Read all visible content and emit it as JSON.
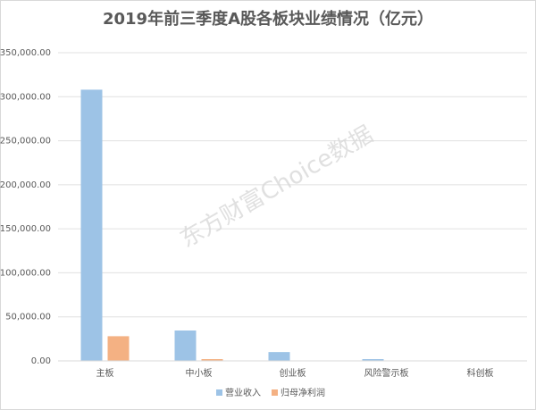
{
  "chart_data": {
    "type": "bar",
    "title": "2019年前三季度A股各板块业绩情况（亿元）",
    "watermark": "东方财富Choice数据",
    "categories": [
      "主板",
      "中小板",
      "创业板",
      "风险警示板",
      "科创板"
    ],
    "series": [
      {
        "name": "营业收入",
        "color": "#9dc3e6",
        "values": [
          308000,
          34500,
          10000,
          2000,
          500
        ]
      },
      {
        "name": "归母净利润",
        "color": "#f4b183",
        "values": [
          28000,
          2000,
          200,
          100,
          50
        ]
      }
    ],
    "ylim": [
      0,
      350000
    ],
    "yticks": [
      {
        "value": 0,
        "label": "0.00"
      },
      {
        "value": 50000,
        "label": "50,000.00"
      },
      {
        "value": 100000,
        "label": "100,000.00"
      },
      {
        "value": 150000,
        "label": "150,000.00"
      },
      {
        "value": 200000,
        "label": "200,000.00"
      },
      {
        "value": 250000,
        "label": "250,000.00"
      },
      {
        "value": 300000,
        "label": "300,000.00"
      },
      {
        "value": 350000,
        "label": "350,000.00"
      }
    ],
    "grid": true,
    "legend": "bottom"
  }
}
